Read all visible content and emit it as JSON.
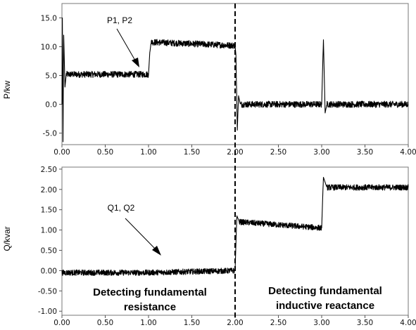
{
  "chart_data": [
    {
      "type": "line",
      "ylabel": "P/kw",
      "xlim": [
        0,
        4
      ],
      "ylim": [
        -7,
        17.5
      ],
      "x_ticks": [
        "0.00",
        "0.50",
        "1.00",
        "1.50",
        "2.00",
        "2.50",
        "3.00",
        "3.50",
        "4.00"
      ],
      "y_ticks": [
        "15.0",
        "10.0",
        "5.0",
        "0.0",
        "-5.0"
      ],
      "series": [
        {
          "name": "P1, P2",
          "points": [
            [
              0.0,
              0.0
            ],
            [
              0.005,
              15.0
            ],
            [
              0.012,
              -6.5
            ],
            [
              0.02,
              12.0
            ],
            [
              0.035,
              3.0
            ],
            [
              0.05,
              5.2
            ],
            [
              1.0,
              5.2
            ],
            [
              1.015,
              9.0
            ],
            [
              1.03,
              10.8
            ],
            [
              2.0,
              10.2
            ],
            [
              2.01,
              8.5
            ],
            [
              2.025,
              -4.5
            ],
            [
              2.04,
              1.5
            ],
            [
              2.06,
              0.0
            ],
            [
              3.0,
              0.0
            ],
            [
              3.02,
              11.2
            ],
            [
              3.04,
              -1.5
            ],
            [
              3.06,
              0.0
            ],
            [
              4.0,
              0.0
            ]
          ]
        }
      ],
      "annotations": [
        {
          "text": "P1, P2"
        }
      ]
    },
    {
      "type": "line",
      "ylabel": "Q/kvar",
      "xlim": [
        0,
        4
      ],
      "ylim": [
        -1.1,
        2.55
      ],
      "x_ticks": [
        "0.00",
        "0.50",
        "1.00",
        "1.50",
        "2.00",
        "2.50",
        "3.00",
        "3.50",
        "4.00"
      ],
      "y_ticks": [
        "2.50",
        "2.00",
        "1.50",
        "1.00",
        "0.50",
        "0.00",
        "-0.50",
        "-1.00"
      ],
      "series": [
        {
          "name": "Q1, Q2",
          "points": [
            [
              0.0,
              -0.05
            ],
            [
              1.0,
              -0.05
            ],
            [
              2.0,
              0.0
            ],
            [
              2.02,
              1.35
            ],
            [
              2.05,
              1.2
            ],
            [
              3.0,
              1.05
            ],
            [
              3.02,
              2.3
            ],
            [
              3.06,
              2.05
            ],
            [
              4.0,
              2.05
            ]
          ]
        }
      ],
      "annotations": [
        {
          "text": "Q1, Q2"
        },
        {
          "text": "Detecting fundamental"
        },
        {
          "text": "resistance"
        },
        {
          "text": "Detecting fundamental"
        },
        {
          "text": "inductive reactance"
        }
      ]
    }
  ]
}
